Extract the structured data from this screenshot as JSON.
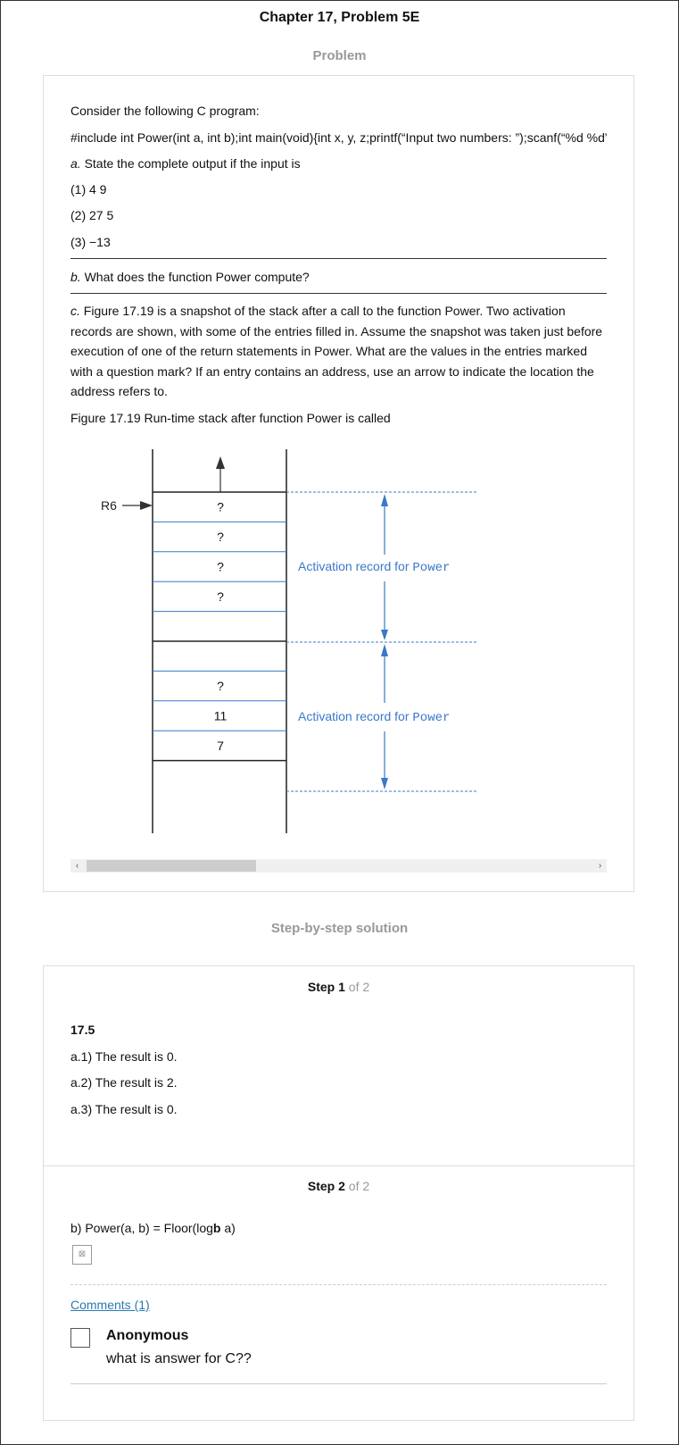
{
  "header": {
    "chapter_title": "Chapter 17, Problem 5E",
    "problem_heading": "Problem"
  },
  "problem": {
    "intro": "Consider the following C program:",
    "code": "#include int Power(int a, int b);int main(void){int x, y, z;printf(“Input two numbers: ”);scanf(“%d %d”, &x, &y);",
    "part_a_letter": "a.",
    "part_a_text": " State the complete output if the input is",
    "inputs": [
      "(1) 4 9",
      "(2) 27 5",
      "(3) −13"
    ],
    "part_b_letter": "b.",
    "part_b_text": " What does the function Power compute?",
    "part_c_letter": "c.",
    "part_c_text": " Figure 17.19 is a snapshot of the stack after a call to the function Power. Two activation records are shown, with some of the entries filled in. Assume the snapshot was taken just before execution of one of the return statements in Power. What are the values in the entries marked with a question mark? If an entry contains an address, use an arrow to indicate the location the address refers to.",
    "figure_caption": "Figure 17.19 Run-time stack after function Power is called"
  },
  "figure": {
    "pointer_label": "R6",
    "cells": [
      "?",
      "?",
      "?",
      "?",
      "",
      "",
      "?",
      "11",
      "7"
    ],
    "record_label_prefix": "Activation record for ",
    "record_label_code": "Power",
    "record_color": "#3a78c9"
  },
  "solution": {
    "heading": "Step-by-step solution",
    "step_word": "Step",
    "steps": [
      {
        "number": "1",
        "of_total": "of 2"
      },
      {
        "number": "2",
        "of_total": "of 2"
      }
    ],
    "step1_title": "17.5",
    "step1_lines": [
      "a.1) The result is 0.",
      "a.2) The result is 2.",
      "a.3) The result is 0."
    ],
    "step2_prefix": "b) Power(a, b) = Floor(log",
    "step2_bold": "b",
    "step2_suffix": " a)"
  },
  "comments": {
    "link_label": "Comments (1)",
    "items": [
      {
        "author": "Anonymous",
        "text": "what is answer for C??"
      }
    ]
  },
  "scrollbar": {
    "left_arrow": "‹",
    "right_arrow": "›"
  }
}
